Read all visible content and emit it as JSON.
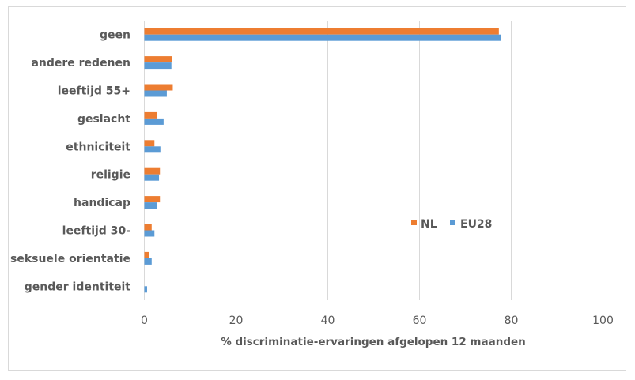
{
  "chart_data": {
    "type": "bar",
    "orientation": "horizontal",
    "title": "",
    "categories": [
      "geen",
      "andere redenen",
      "leeftijd 55+",
      "geslacht",
      "ethniciteit",
      "religie",
      "handicap",
      "leeftijd 30-",
      "seksuele orientatie",
      "gender identiteit"
    ],
    "series": [
      {
        "name": "NL",
        "color": "#ed7d31",
        "values": [
          77.3,
          6.1,
          6.2,
          2.7,
          2.2,
          3.4,
          3.4,
          1.6,
          1.1,
          0.0
        ]
      },
      {
        "name": "EU28",
        "color": "#5b9bd5",
        "values": [
          77.7,
          5.9,
          4.9,
          4.2,
          3.5,
          3.2,
          2.8,
          2.2,
          1.6,
          0.6
        ]
      }
    ],
    "xlabel": "% discriminatie-ervaringen afgelopen 12 maanden",
    "ylabel": "",
    "xlim": [
      0,
      100
    ],
    "xticks": [
      "0",
      "20",
      "40",
      "60",
      "80",
      "100"
    ],
    "grid": true,
    "legend_position": "right-middle"
  }
}
